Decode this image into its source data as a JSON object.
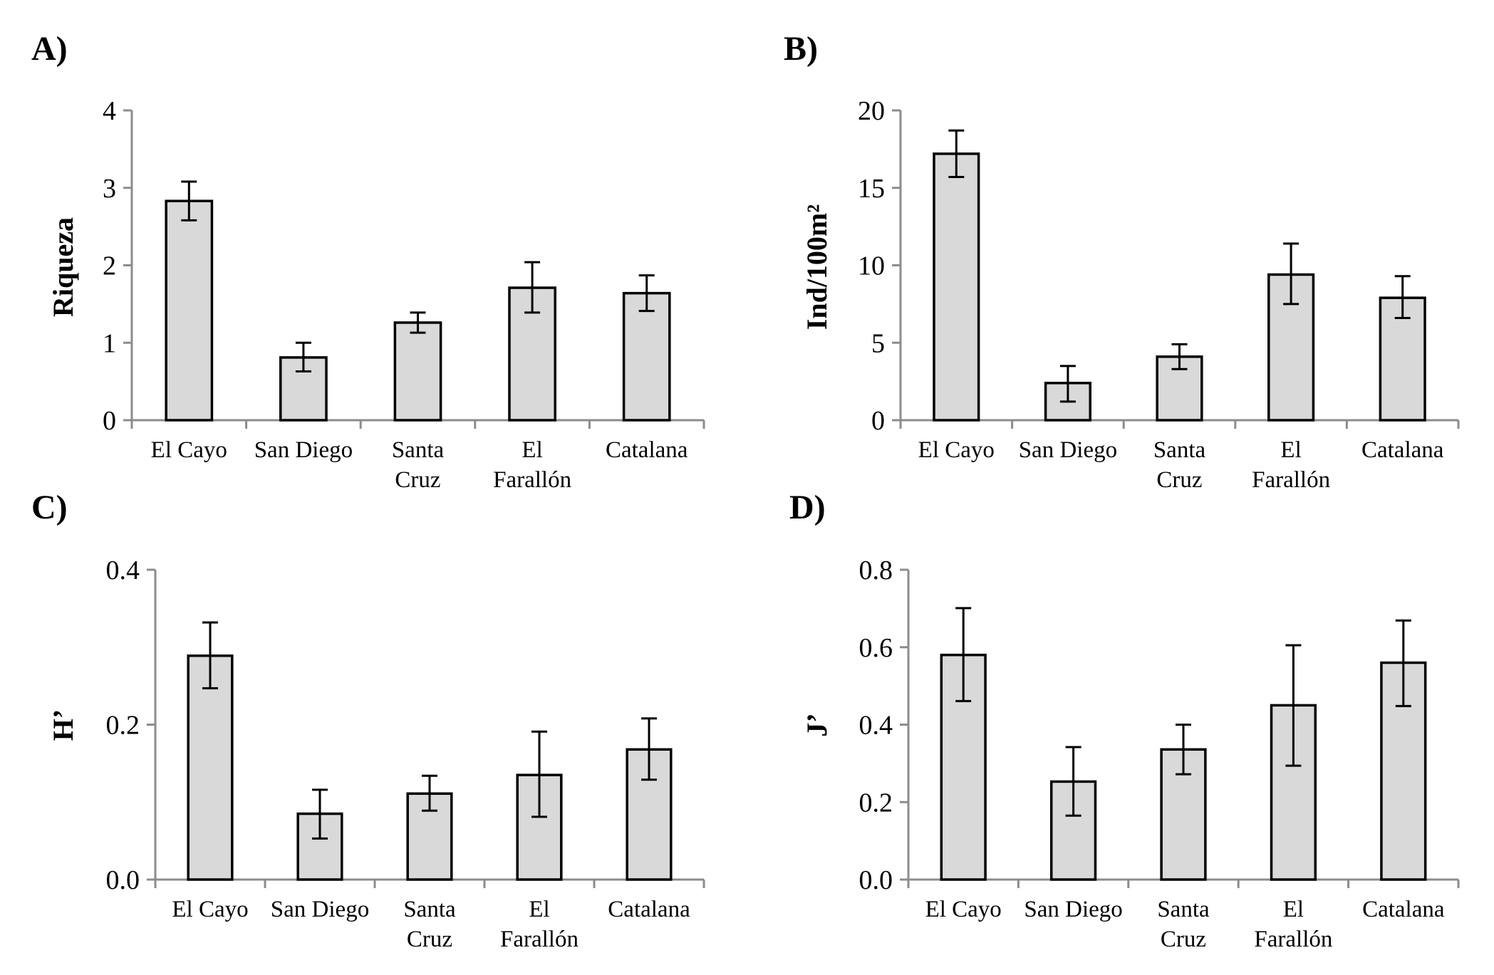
{
  "chart_data": [
    {
      "panel": "A)",
      "type": "bar",
      "title": "",
      "xlabel": "",
      "ylabel": "Riqueza",
      "categories": [
        [
          "El Cayo"
        ],
        [
          "San Diego"
        ],
        [
          "Santa",
          "Cruz"
        ],
        [
          "El",
          "Farallón"
        ],
        [
          "Catalana"
        ]
      ],
      "values": [
        2.83,
        0.81,
        1.26,
        1.71,
        1.64
      ],
      "error_upper": [
        3.08,
        1.0,
        1.39,
        2.04,
        1.87
      ],
      "error_lower": [
        2.58,
        0.63,
        1.13,
        1.39,
        1.41
      ],
      "ylim": [
        0,
        4
      ],
      "yticks": [
        "0",
        "1",
        "2",
        "3",
        "4"
      ],
      "ytick_values": [
        0,
        1,
        2,
        3,
        4
      ],
      "grid": false
    },
    {
      "panel": "B)",
      "type": "bar",
      "title": "",
      "xlabel": "",
      "ylabel": "Ind/100m²",
      "categories": [
        [
          "El Cayo"
        ],
        [
          "San Diego"
        ],
        [
          "Santa",
          "Cruz"
        ],
        [
          "El",
          "Farallón"
        ],
        [
          "Catalana"
        ]
      ],
      "values": [
        17.2,
        2.4,
        4.1,
        9.4,
        7.9
      ],
      "error_upper": [
        18.7,
        3.5,
        4.9,
        11.4,
        9.3
      ],
      "error_lower": [
        15.7,
        1.2,
        3.3,
        7.5,
        6.6
      ],
      "ylim": [
        0,
        20
      ],
      "yticks": [
        "0",
        "5",
        "10",
        "15",
        "20"
      ],
      "ytick_values": [
        0,
        5,
        10,
        15,
        20
      ],
      "grid": false
    },
    {
      "panel": "C)",
      "type": "bar",
      "title": "",
      "xlabel": "",
      "ylabel": "H’",
      "categories": [
        [
          "El Cayo"
        ],
        [
          "San Diego"
        ],
        [
          "Santa",
          "Cruz"
        ],
        [
          "El",
          "Farallón"
        ],
        [
          "Catalana"
        ]
      ],
      "values": [
        0.289,
        0.085,
        0.111,
        0.135,
        0.168
      ],
      "error_upper": [
        0.332,
        0.116,
        0.134,
        0.191,
        0.208
      ],
      "error_lower": [
        0.247,
        0.053,
        0.089,
        0.081,
        0.129
      ],
      "ylim": [
        0,
        0.4
      ],
      "yticks": [
        "0.0",
        "0.2",
        "0.4"
      ],
      "ytick_values": [
        0,
        0.2,
        0.4
      ],
      "grid": false
    },
    {
      "panel": "D)",
      "type": "bar",
      "title": "",
      "xlabel": "",
      "ylabel": "J’",
      "categories": [
        [
          "El Cayo"
        ],
        [
          "San Diego"
        ],
        [
          "Santa",
          "Cruz"
        ],
        [
          "El",
          "Farallón"
        ],
        [
          "Catalana"
        ]
      ],
      "values": [
        0.58,
        0.253,
        0.336,
        0.45,
        0.56
      ],
      "error_upper": [
        0.701,
        0.342,
        0.4,
        0.605,
        0.669
      ],
      "error_lower": [
        0.461,
        0.165,
        0.272,
        0.294,
        0.448
      ],
      "ylim": [
        0,
        0.8
      ],
      "yticks": [
        "0.0",
        "0.2",
        "0.4",
        "0.6",
        "0.8"
      ],
      "ytick_values": [
        0,
        0.2,
        0.4,
        0.6,
        0.8
      ],
      "grid": false
    }
  ],
  "colors": {
    "bar_fill": "#d9d9d9",
    "bar_stroke": "#000000",
    "axis": "#8c8c8c"
  }
}
